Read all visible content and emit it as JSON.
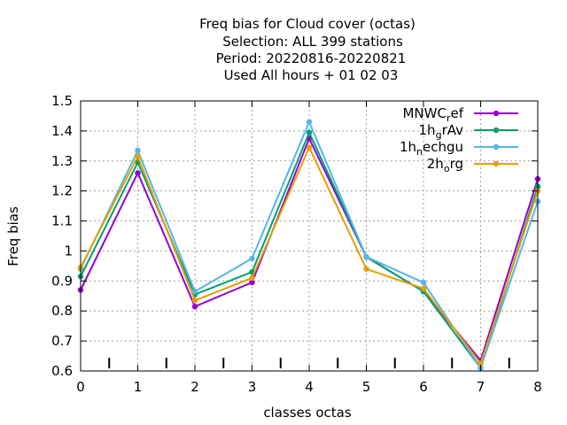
{
  "chart_data": {
    "type": "line",
    "title_lines": [
      "Freq bias  for Cloud cover (octas)",
      "Selection: ALL    399 stations",
      "Period: 20220816-20220821",
      "Used  All hours  + 01 02 03"
    ],
    "xlabel": "classes octas",
    "ylabel": "Freq bias",
    "x": [
      0,
      1,
      2,
      3,
      4,
      5,
      6,
      7,
      8
    ],
    "xlim": [
      0,
      8
    ],
    "ylim": [
      0.6,
      1.5
    ],
    "x_ticks": [
      "0",
      "1",
      "2",
      "3",
      "4",
      "5",
      "6",
      "7",
      "8"
    ],
    "y_ticks": [
      "0.6",
      "0.7",
      "0.8",
      "0.9",
      "1",
      "1.1",
      "1.2",
      "1.3",
      "1.4",
      "1.5"
    ],
    "grid": true,
    "legend_position": "top-right",
    "series": [
      {
        "name": "MNWC_ref",
        "legend_main": "MNWC",
        "legend_sub": "r",
        "legend_tail": "ef",
        "color": "#9400d3",
        "values": [
          0.87,
          1.26,
          0.815,
          0.895,
          1.375,
          0.98,
          0.865,
          0.635,
          1.24
        ]
      },
      {
        "name": "1h_grAv",
        "legend_main": "1h",
        "legend_sub": "g",
        "legend_tail": "rAv",
        "color": "#009e73",
        "values": [
          0.915,
          1.295,
          0.855,
          0.93,
          1.395,
          0.98,
          0.865,
          0.61,
          1.215
        ]
      },
      {
        "name": "1h_nechgu",
        "legend_main": "1h",
        "legend_sub": "n",
        "legend_tail": "echgu",
        "color": "#56b4e9",
        "values": [
          0.94,
          1.335,
          0.865,
          0.975,
          1.43,
          0.98,
          0.895,
          0.61,
          1.165
        ]
      },
      {
        "name": "2h_org",
        "legend_main": "2h",
        "legend_sub": "o",
        "legend_tail": "rg",
        "color": "#e69f00",
        "values": [
          0.945,
          1.315,
          0.835,
          0.91,
          1.345,
          0.94,
          0.875,
          0.625,
          1.2
        ]
      }
    ]
  }
}
